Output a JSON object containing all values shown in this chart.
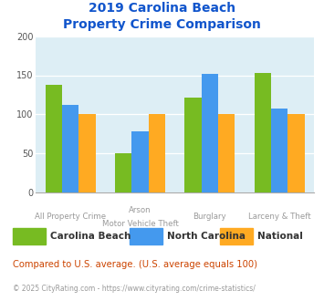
{
  "title_line1": "2019 Carolina Beach",
  "title_line2": "Property Crime Comparison",
  "categories": [
    [
      "All Property Crime",
      ""
    ],
    [
      "Arson",
      "Motor Vehicle Theft"
    ],
    [
      "Burglary",
      ""
    ],
    [
      "Larceny & Theft",
      ""
    ]
  ],
  "series": {
    "Carolina Beach": [
      138,
      50,
      122,
      153
    ],
    "North Carolina": [
      112,
      78,
      152,
      107
    ],
    "National": [
      100,
      100,
      100,
      100
    ]
  },
  "colors": {
    "Carolina Beach": "#77bb22",
    "North Carolina": "#4499ee",
    "National": "#ffaa22"
  },
  "ylim": [
    0,
    200
  ],
  "yticks": [
    0,
    50,
    100,
    150,
    200
  ],
  "plot_bg": "#ddeef5",
  "title_color": "#1155cc",
  "xlabel_color": "#999999",
  "footnote_color": "#cc4400",
  "copyright_color": "#999999",
  "legend_text_color": "#333333",
  "footnote": "Compared to U.S. average. (U.S. average equals 100)",
  "copyright": "© 2025 CityRating.com - https://www.cityrating.com/crime-statistics/"
}
